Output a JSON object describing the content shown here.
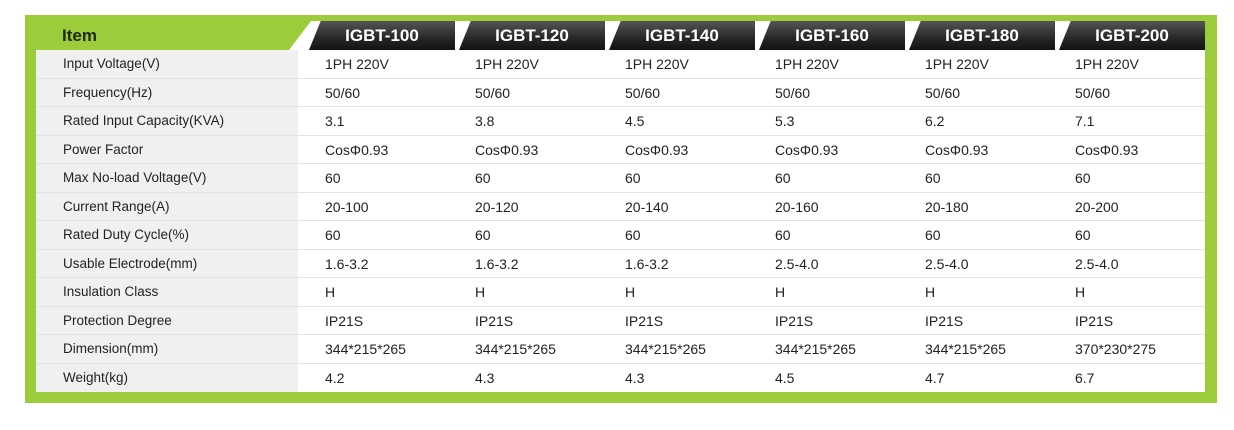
{
  "table": {
    "header": {
      "item": "Item",
      "models": [
        "IGBT-100",
        "IGBT-120",
        "IGBT-140",
        "IGBT-160",
        "IGBT-180",
        "IGBT-200"
      ]
    },
    "rows": [
      {
        "label": "Input Voltage(V)",
        "values": [
          "1PH 220V",
          "1PH 220V",
          "1PH 220V",
          "1PH 220V",
          "1PH 220V",
          "1PH 220V"
        ]
      },
      {
        "label": "Frequency(Hz)",
        "values": [
          "50/60",
          "50/60",
          "50/60",
          "50/60",
          "50/60",
          "50/60"
        ]
      },
      {
        "label": "Rated Input Capacity(KVA)",
        "values": [
          "3.1",
          "3.8",
          "4.5",
          "5.3",
          "6.2",
          "7.1"
        ]
      },
      {
        "label": "Power Factor",
        "values": [
          "CosΦ0.93",
          "CosΦ0.93",
          "CosΦ0.93",
          "CosΦ0.93",
          "CosΦ0.93",
          "CosΦ0.93"
        ]
      },
      {
        "label": "Max No-load Voltage(V)",
        "values": [
          "60",
          "60",
          "60",
          "60",
          "60",
          "60"
        ]
      },
      {
        "label": "Current Range(A)",
        "values": [
          "20-100",
          "20-120",
          "20-140",
          "20-160",
          "20-180",
          "20-200"
        ]
      },
      {
        "label": "Rated Duty Cycle(%)",
        "values": [
          "60",
          "60",
          "60",
          "60",
          "60",
          "60"
        ]
      },
      {
        "label": "Usable Electrode(mm)",
        "values": [
          "1.6-3.2",
          "1.6-3.2",
          "1.6-3.2",
          "2.5-4.0",
          "2.5-4.0",
          "2.5-4.0"
        ]
      },
      {
        "label": "Insulation Class",
        "values": [
          "H",
          "H",
          "H",
          "H",
          "H",
          "H"
        ]
      },
      {
        "label": "Protection Degree",
        "values": [
          "IP21S",
          "IP21S",
          "IP21S",
          "IP21S",
          "IP21S",
          "IP21S"
        ]
      },
      {
        "label": "Dimension(mm)",
        "values": [
          "344*215*265",
          "344*215*265",
          "344*215*265",
          "344*215*265",
          "344*215*265",
          "370*230*275"
        ]
      },
      {
        "label": "Weight(kg)",
        "values": [
          "4.2",
          "4.3",
          "4.3",
          "4.5",
          "4.7",
          "6.7"
        ]
      }
    ]
  },
  "colors": {
    "accent_green": "#9ccb3b",
    "header_dark": "#2a2a2a",
    "label_bg": "#f0f0f0"
  }
}
